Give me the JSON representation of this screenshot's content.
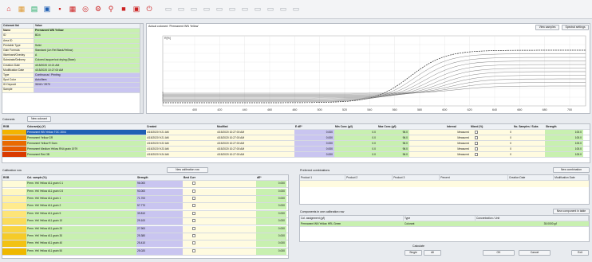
{
  "toolbar": {
    "icons": [
      "home-icon",
      "colorants-icon",
      "chart-icon",
      "database-icon",
      "save-icon",
      "print-icon",
      "target-icon",
      "settings-icon",
      "search-icon",
      "stop-icon",
      "export-icon",
      "exit-icon",
      "copy-icon",
      "copy2-icon",
      "paste-icon",
      "paste2-icon",
      "pen-icon",
      "graph-icon",
      "table-icon",
      "table2-icon",
      "edit-icon",
      "edit2-icon",
      "list-icon"
    ]
  },
  "props": {
    "header": [
      "Colorant list",
      "Value"
    ],
    "rows": [
      {
        "label": "Name",
        "value": "Permanent WN Yellow"
      },
      {
        "label": "ID",
        "value": "BD4"
      },
      {
        "label": "Area ID",
        "value": ""
      },
      {
        "label": "Printable Type",
        "value": "Solid"
      },
      {
        "label": "Gain Formula",
        "value": "Standard (Lin Rel Black/Yellow)"
      },
      {
        "label": "Illuminant/Overlay",
        "value": "A"
      },
      {
        "label": "Substrate/Delivery",
        "value": "Colored lacquer/cut drying (Base)"
      },
      {
        "label": "Creation Date",
        "value": "4/15/2020 10:21 AM"
      },
      {
        "label": "Modification Date",
        "value": "4/15/2020 10:27:00 AM"
      },
      {
        "label": "Type",
        "value": "Continuous / Printing"
      },
      {
        "label": "Spot Color",
        "value": "Auto/Item"
      },
      {
        "label": "ID Deposit",
        "value": "30/40 / 3970"
      },
      {
        "label": "Sample",
        "value": ""
      }
    ]
  },
  "spectrum": {
    "title": "Actual colorant: 'Permanent WN Yellow'",
    "btn_view": "View samples",
    "btn_settings": "Spectral settings",
    "y_label": "R[%]",
    "x_ticks": [
      "400",
      "420",
      "440",
      "460",
      "480",
      "500",
      "520",
      "540",
      "560",
      "580",
      "600",
      "620",
      "640",
      "660",
      "680",
      "700"
    ]
  },
  "colorants_bar": {
    "label": "Colorants",
    "btn_new": "New colorant"
  },
  "colorants_table": {
    "headers": [
      "RGB",
      "Colorant(s) (Y)",
      "Created",
      "Modified",
      "",
      "",
      " E dE*",
      "Min Conc (g/l)",
      "Max Conc (g/l)",
      "",
      "Interval",
      "Mixed (%)",
      "",
      "No. Samples / Subs",
      "Strength"
    ],
    "rows": [
      {
        "rgb": "#f3b400",
        "name": "Permanent WN Yellow TOC 2004",
        "created": "4/15/2020 9:21 AM",
        "modified": "4/15/2020 10:27:00 AM",
        "de": "0.000",
        "min": "0.0",
        "max": "96.0",
        "interval": "Measured",
        "mixed": "0",
        "strength": "100.0"
      },
      {
        "rgb": "#f08a00",
        "name": "Permanent Yellow GR",
        "created": "4/15/2020 9:21 AM",
        "modified": "4/15/2020 10:27:00 AM",
        "de": "0.000",
        "min": "0.0",
        "max": "96.0",
        "interval": "Measured",
        "mixed": "0",
        "strength": "100.0"
      },
      {
        "rgb": "#e96a00",
        "name": "Permanent Yellow R Dam",
        "created": "4/15/2020 9:22 AM",
        "modified": "4/15/2020 10:27:00 AM",
        "de": "0.000",
        "min": "0.0",
        "max": "96.0",
        "interval": "Measured",
        "mixed": "0",
        "strength": "100.0"
      },
      {
        "rgb": "#e55a00",
        "name": "Permanent Medium Yellow RN4 grain 1979",
        "created": "4/15/2020 9:23 AM",
        "modified": "4/15/2020 10:27:00 AM",
        "de": "0.000",
        "min": "0.0",
        "max": "96.0",
        "interval": "Measured",
        "mixed": "0",
        "strength": "100.0"
      },
      {
        "rgb": "#d93a00",
        "name": "Permanent Red 3B",
        "created": "4/15/2020 9:24 AM",
        "modified": "4/15/2020 10:27:00 AM",
        "de": "0.000",
        "min": "0.0",
        "max": "96.0",
        "interval": "Measured",
        "mixed": "0",
        "strength": "100.0"
      }
    ]
  },
  "calibration": {
    "label": "Calibration row",
    "btn_new": "New calibration row",
    "headers": [
      "RGB",
      "Col. sample (%)",
      "Strength",
      "Best Curr",
      "",
      "dE*"
    ],
    "rows": [
      {
        "rgb": "#fffbd8",
        "name": "Perm. Yell Yellow #11 grain 0.1",
        "strength": "96.000",
        "de": "0.000"
      },
      {
        "rgb": "#fff7c0",
        "name": "Perm. Yell Yellow #11 grain 0.5",
        "strength": "93.000",
        "de": "0.000"
      },
      {
        "rgb": "#fff1a6",
        "name": "Perm. Yell Yellow #11 grain 1",
        "strength": "71.700",
        "de": "0.000"
      },
      {
        "rgb": "#ffeb8e",
        "name": "Perm. Yell Yellow #11 grain 2",
        "strength": "57.770",
        "de": "0.000"
      },
      {
        "rgb": "#fde478",
        "name": "Perm. Yell Yellow #11 grain 5",
        "strength": "39.810",
        "de": "0.000"
      },
      {
        "rgb": "#fbdc5a",
        "name": "Perm. Yell Yellow #11 grain 10",
        "strength": "29.100",
        "de": "0.000"
      },
      {
        "rgb": "#f8d440",
        "name": "Perm. Yell Yellow #11 grain 20",
        "strength": "27.900",
        "de": "0.000"
      },
      {
        "rgb": "#f5cb28",
        "name": "Perm. Yell Yellow #11 grain 30",
        "strength": "25.380",
        "de": "0.000"
      },
      {
        "rgb": "#f2c214",
        "name": "Perm. Yell Yellow #11 grain 40",
        "strength": "25.410",
        "de": "0.000"
      },
      {
        "rgb": "#efb800",
        "name": "Perm. Yell Yellow #11 grain 50",
        "strength": "25.020",
        "de": "0.000"
      }
    ]
  },
  "combination": {
    "label": "Preferred combinations",
    "btn_new": "New combination",
    "headers": [
      "Product 1",
      "Product 2",
      "Product 3",
      "Percent",
      "Creation Date",
      "Modification Date"
    ]
  },
  "components": {
    "label": "Components in one calibration row",
    "btn_new": "New component in table",
    "headers": [
      "Col. assignment (g/l)",
      "Type",
      "Concentration / Unit"
    ],
    "row": {
      "name": "Permanent WN Yellow HRL Green",
      "type": "Colorant",
      "conc": "35.0000 g/l"
    }
  },
  "footer": {
    "label": "Calculate",
    "btn_single": "Single",
    "btn_all": "All",
    "btn_ok": "OK",
    "btn_cancel": "Cancel",
    "btn_exit": "Exit"
  },
  "colors": {
    "accent_blue": "#1f5fb4",
    "green": "#c8f0b0",
    "yellow": "#fffbe0",
    "lilac": "#c9c5f0"
  }
}
